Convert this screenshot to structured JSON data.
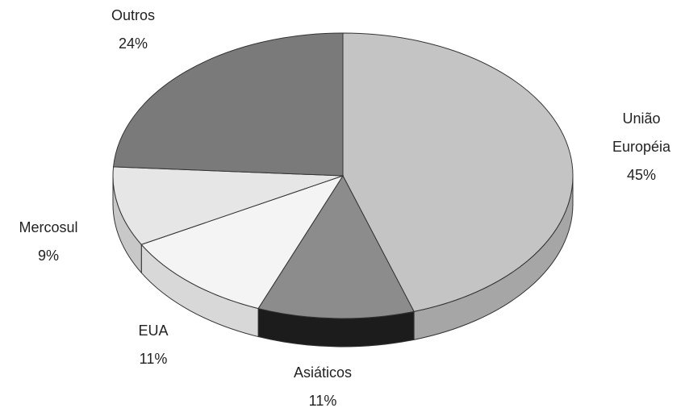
{
  "chart_data": {
    "type": "pie",
    "categories": [
      "União Européia",
      "Asiáticos",
      "EUA",
      "Mercosul",
      "Outros"
    ],
    "values": [
      45,
      11,
      11,
      9,
      24
    ],
    "value_labels": [
      "45%",
      "11%",
      "11%",
      "9%",
      "24%"
    ],
    "colors": [
      "#c4c4c4",
      "#8c8c8c",
      "#f4f4f4",
      "#e6e6e6",
      "#7a7a7a"
    ],
    "side_colors": [
      "#a6a6a6",
      "#1c1c1c",
      "#d8d8d8",
      "#c8c8c8",
      "#5a5a5a"
    ]
  }
}
